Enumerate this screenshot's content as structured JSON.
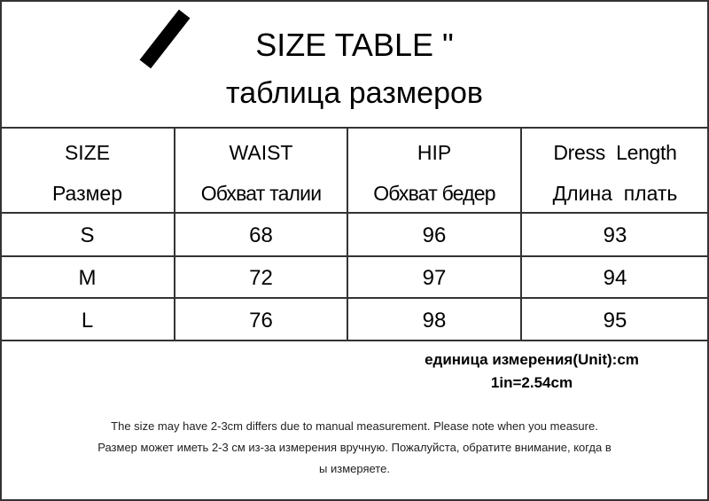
{
  "title": {
    "english": "SIZE TABLE \"",
    "russian": "таблица размеров"
  },
  "table": {
    "headers": [
      {
        "en": "SIZE",
        "ru": "Размер"
      },
      {
        "en": "WAIST",
        "ru": "Обхват талии"
      },
      {
        "en": "HIP",
        "ru": "Обхват бедер"
      },
      {
        "en": "Dress  Length",
        "ru": "Длина  плать"
      }
    ],
    "rows": [
      [
        "S",
        "68",
        "96",
        "93"
      ],
      [
        "M",
        "72",
        "97",
        "94"
      ],
      [
        "L",
        "76",
        "98",
        "95"
      ]
    ]
  },
  "unit": {
    "line1": "единица измерения(Unit):cm",
    "line2": "1in=2.54cm"
  },
  "notes": {
    "en": "The size may have 2-3cm differs due to manual measurement. Please note when you measure.",
    "ru1": "Размер может иметь 2-3 см из-за измерения вручную. Пожалуйста, обратите внимание, когда в",
    "ru2": "ы измеряете."
  }
}
